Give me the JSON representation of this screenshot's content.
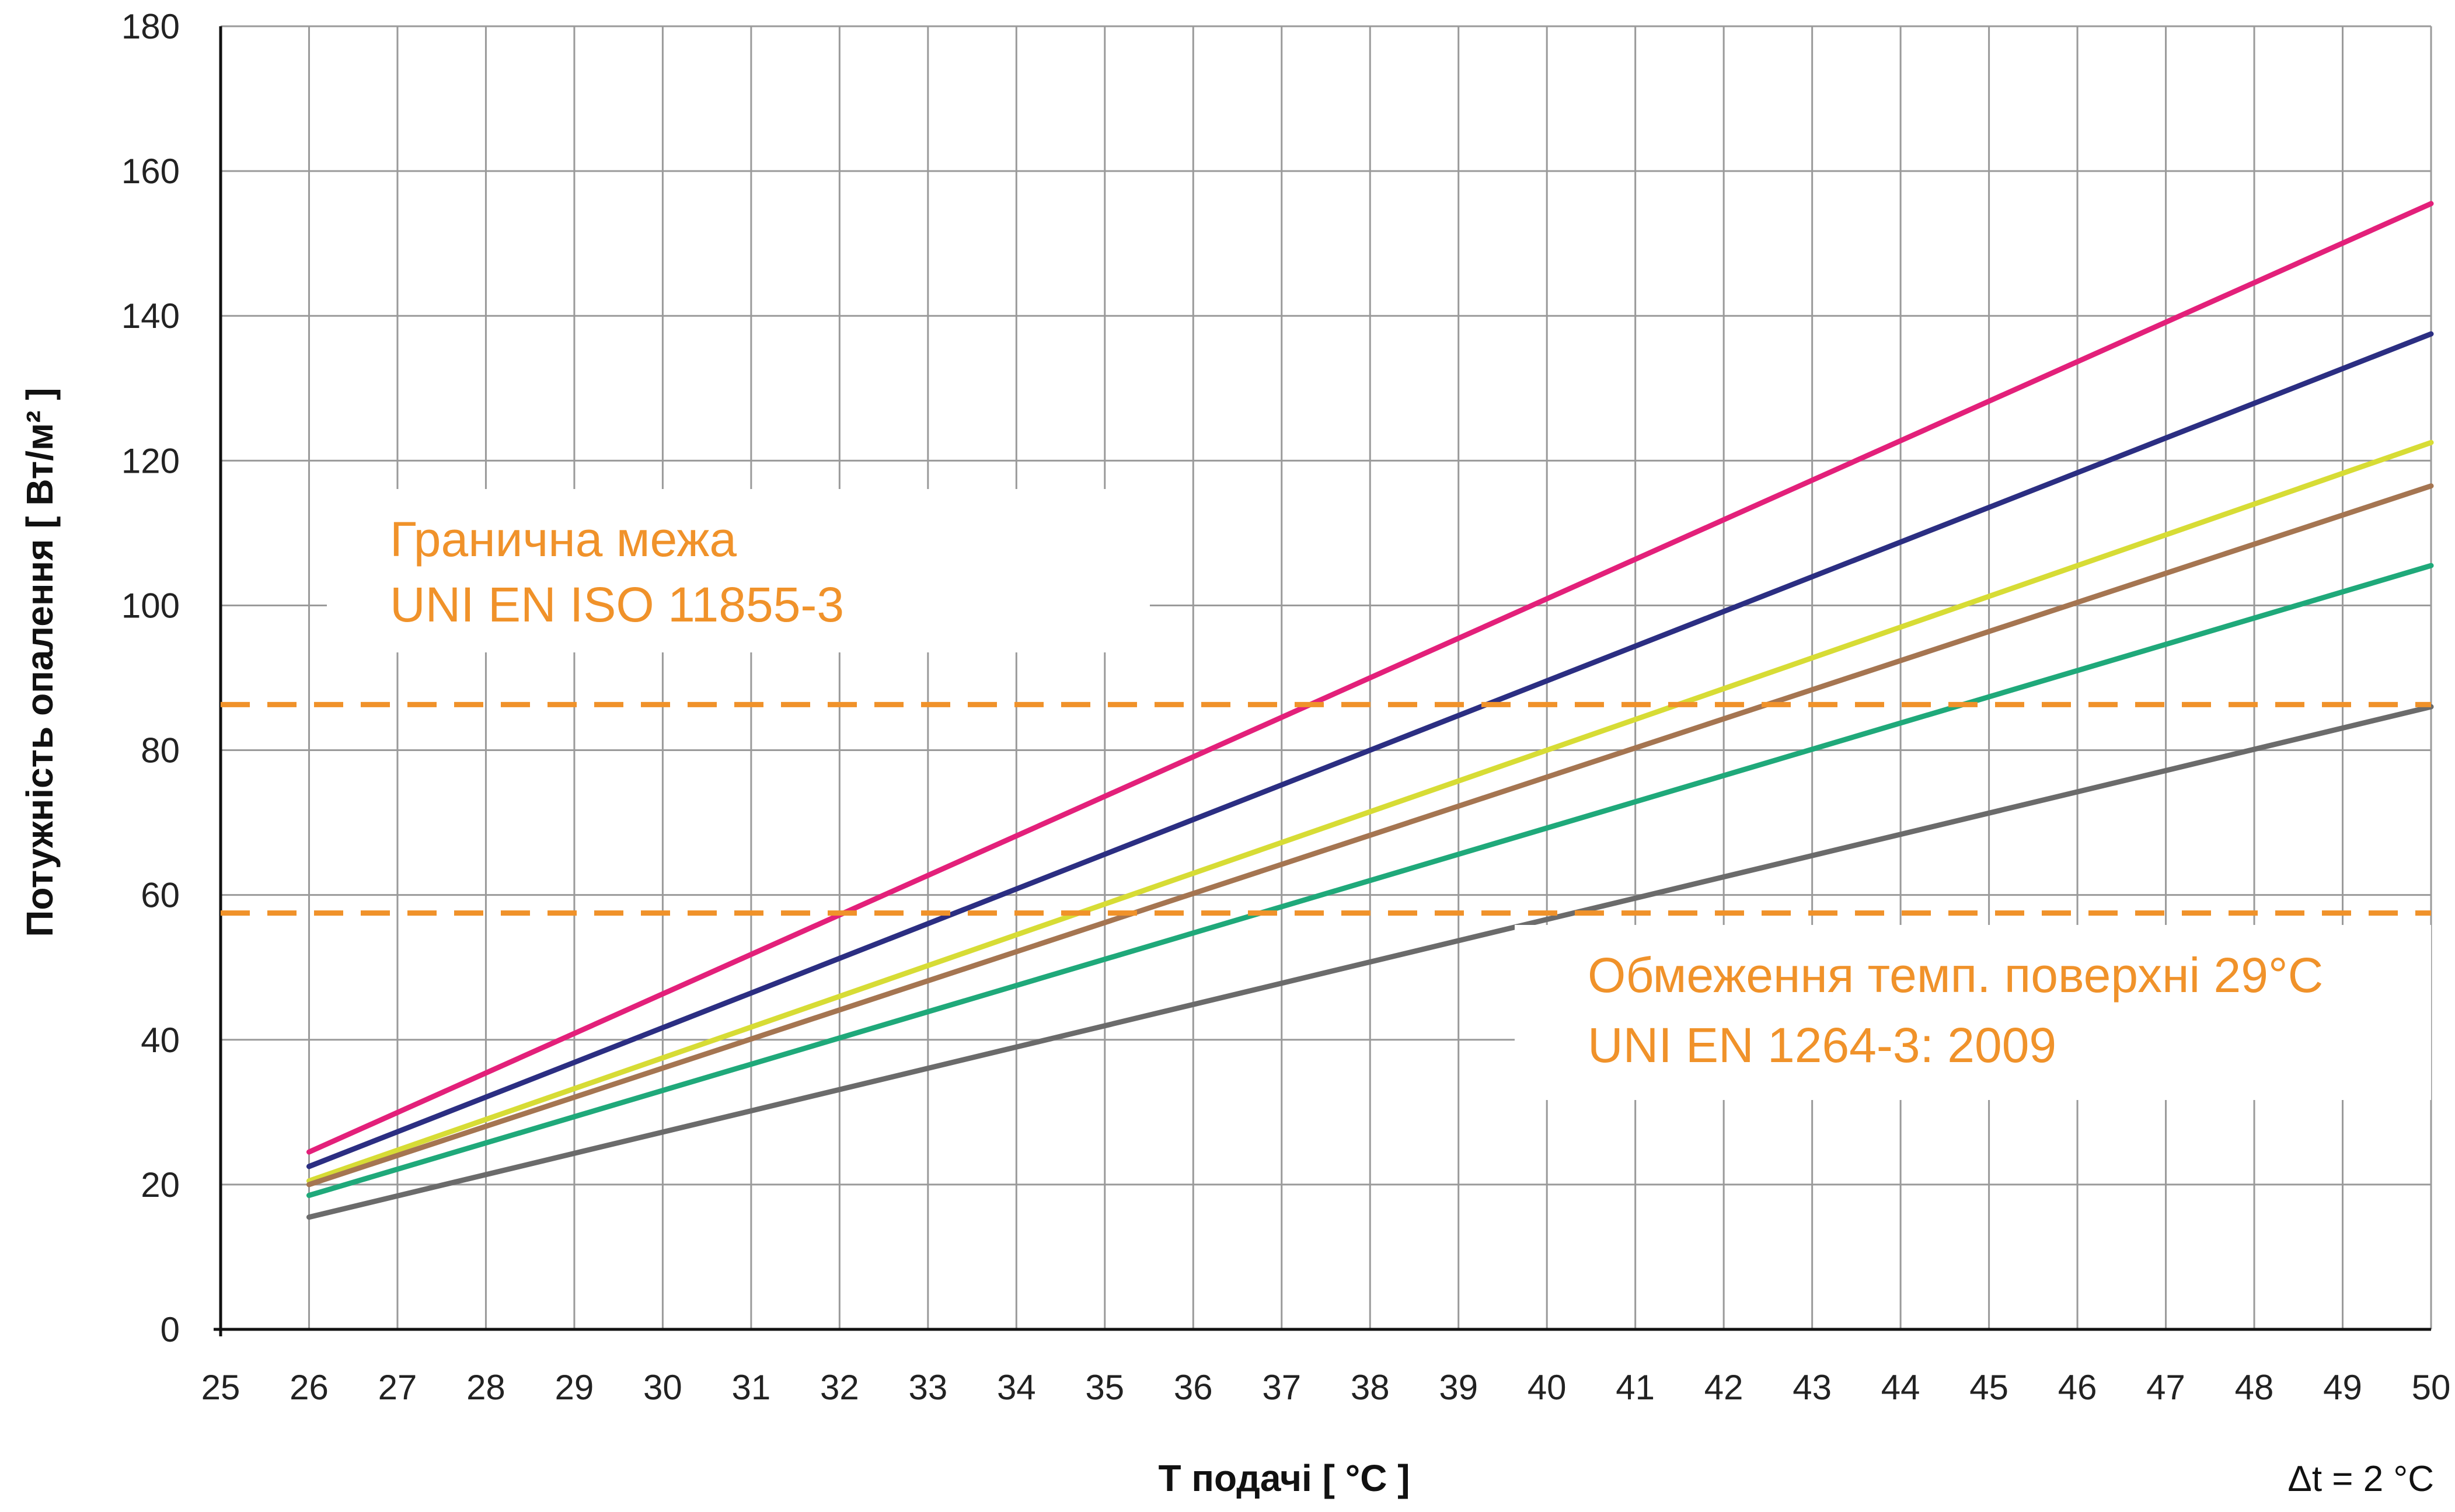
{
  "chart_data": {
    "type": "line",
    "xlabel": "Т подачі [ °C ]",
    "ylabel": "Потужність опалення [ Вт/м² ]",
    "xlim": [
      25,
      50
    ],
    "ylim": [
      0,
      180
    ],
    "x_ticks": [
      25,
      26,
      27,
      28,
      29,
      30,
      31,
      32,
      33,
      34,
      35,
      36,
      37,
      38,
      39,
      40,
      41,
      42,
      43,
      44,
      45,
      46,
      47,
      48,
      49,
      50
    ],
    "y_ticks": [
      0,
      20,
      40,
      60,
      80,
      100,
      120,
      140,
      160,
      180
    ],
    "grid": true,
    "series": [
      {
        "color": "#e3207a",
        "x": [
          26,
          50
        ],
        "values": [
          24.5,
          155.5
        ]
      },
      {
        "color": "#2b2e82",
        "x": [
          26,
          50
        ],
        "values": [
          22.5,
          137.5
        ]
      },
      {
        "color": "#d7dc35",
        "x": [
          26,
          50
        ],
        "values": [
          20.5,
          122.5
        ]
      },
      {
        "color": "#a57551",
        "x": [
          26,
          50
        ],
        "values": [
          20.0,
          116.5
        ]
      },
      {
        "color": "#1fa97a",
        "x": [
          26,
          50
        ],
        "values": [
          18.5,
          105.5
        ]
      },
      {
        "color": "#6b6b6b",
        "x": [
          26,
          50
        ],
        "values": [
          15.5,
          86.0
        ]
      }
    ],
    "reference_lines": [
      {
        "y": 86.3,
        "color": "#f0922a",
        "style": "dashed"
      },
      {
        "y": 57.5,
        "color": "#f0922a",
        "style": "dashed"
      }
    ],
    "annotations": [
      {
        "lines": [
          "Гранична межа",
          "UNI EN ISO 11855-3"
        ],
        "color": "#f0922a"
      },
      {
        "lines": [
          "Обмеження темп. поверхні 29°C",
          "UNI EN 1264-3: 2009"
        ],
        "color": "#f0922a"
      }
    ],
    "note": "Δt = 2 °C"
  }
}
